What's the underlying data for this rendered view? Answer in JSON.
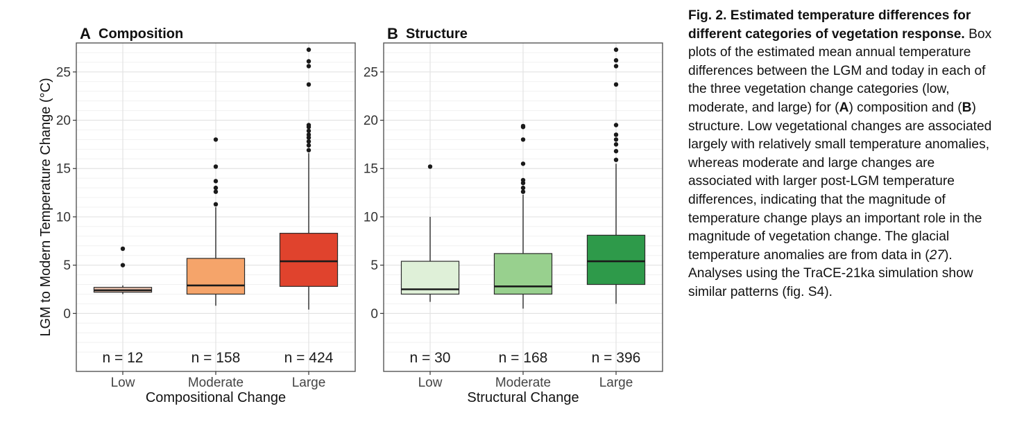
{
  "caption": {
    "title": "Fig. 2. Estimated temperature differences for different categories of vegetation response.",
    "body_1": " Box plots of the estimated mean annual temperature differences between the LGM and today in each of the three vegetation change categories (low, moderate, and large) for (",
    "panel_a": "A",
    "body_2": ") composition and (",
    "panel_b": "B",
    "body_3": ") structure. Low vegetational changes are associated largely with relatively small temperature anomalies, whereas moderate and large changes are associated with larger post-LGM temperature differences, indicating that the magnitude of temperature change plays an important role in the magnitude of vegetation change. The glacial temperature anomalies are from data in (",
    "ref": "27",
    "body_4": "). Analyses using the TraCE-21ka simulation show similar patterns (fig. S4)."
  },
  "colors": {
    "panel_border": "#555555",
    "grid_major": "#e3e3e3",
    "grid_minor": "#f1f1f1",
    "median": "#1a1a1a",
    "whisker": "#1a1a1a",
    "outlier": "#1a1a1a"
  },
  "chart_data": [
    {
      "type": "box",
      "panel_letter": "A",
      "title": "Composition",
      "xlabel": "Compositional Change",
      "ylabel": "LGM to Modern Temperature Change (°C)",
      "ylim": [
        -6,
        28
      ],
      "yticks": [
        0,
        5,
        10,
        15,
        20,
        25
      ],
      "grid": true,
      "categories": [
        "Low",
        "Moderate",
        "Large"
      ],
      "counts": [
        "n =  12",
        "n =  158",
        "n =  424"
      ],
      "boxes": [
        {
          "category": "Low",
          "min": 2.0,
          "q1": 2.2,
          "median": 2.4,
          "q3": 2.7,
          "max": 2.9,
          "outliers": [
            5.0,
            6.7
          ],
          "color": "#f2c8b2"
        },
        {
          "category": "Moderate",
          "min": 0.8,
          "q1": 2.0,
          "median": 2.9,
          "q3": 5.7,
          "max": 11.0,
          "outliers": [
            11.3,
            12.6,
            13.0,
            13.7,
            15.2,
            18.0
          ],
          "color": "#f5a46a"
        },
        {
          "category": "Large",
          "min": 0.4,
          "q1": 2.8,
          "median": 5.4,
          "q3": 8.3,
          "max": 16.6,
          "outliers": [
            16.9,
            17.4,
            17.8,
            18.2,
            18.5,
            18.9,
            19.3,
            19.5,
            23.7,
            25.6,
            26.1,
            27.3
          ],
          "color": "#e0432d"
        }
      ]
    },
    {
      "type": "box",
      "panel_letter": "B",
      "title": "Structure",
      "xlabel": "Structural Change",
      "ylabel": "",
      "ylim": [
        -6,
        28
      ],
      "yticks": [
        0,
        5,
        10,
        15,
        20,
        25
      ],
      "grid": true,
      "categories": [
        "Low",
        "Moderate",
        "Large"
      ],
      "counts": [
        "n =  30",
        "n =  168",
        "n =  396"
      ],
      "boxes": [
        {
          "category": "Low",
          "min": 1.2,
          "q1": 2.0,
          "median": 2.5,
          "q3": 5.4,
          "max": 10.0,
          "outliers": [
            15.2
          ],
          "color": "#dff0d8"
        },
        {
          "category": "Moderate",
          "min": 0.5,
          "q1": 2.0,
          "median": 2.8,
          "q3": 6.2,
          "max": 12.3,
          "outliers": [
            12.6,
            13.0,
            13.5,
            13.8,
            15.5,
            18.0,
            19.3,
            19.4
          ],
          "color": "#98d08e"
        },
        {
          "category": "Large",
          "min": 1.0,
          "q1": 3.0,
          "median": 5.4,
          "q3": 8.1,
          "max": 15.5,
          "outliers": [
            15.9,
            16.8,
            17.5,
            18.0,
            18.5,
            19.5,
            23.7,
            25.6,
            26.2,
            27.3
          ],
          "color": "#2e9a4a"
        }
      ]
    }
  ]
}
